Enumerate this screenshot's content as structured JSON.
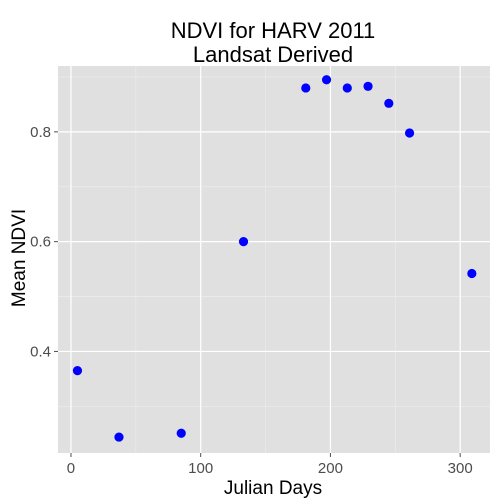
{
  "chart_data": {
    "type": "scatter",
    "title": [
      "NDVI for HARV 2011",
      "Landsat Derived"
    ],
    "xlabel": "Julian Days",
    "ylabel": "Mean NDVI",
    "xlim": [
      -10,
      323
    ],
    "ylim": [
      0.215,
      0.92
    ],
    "xticks": [
      0,
      100,
      200,
      300
    ],
    "yticks": [
      0.4,
      0.6,
      0.8
    ],
    "ytick_labels": [
      "0.4",
      "0.6",
      "0.8"
    ],
    "grid": true,
    "background_color": "#e0e0e0",
    "grid_major_color": "#ffffff",
    "grid_minor_color": "#ebebeb",
    "point_color": "#0000ff",
    "points": [
      {
        "x": 5,
        "y": 0.365
      },
      {
        "x": 37,
        "y": 0.244
      },
      {
        "x": 85,
        "y": 0.251
      },
      {
        "x": 133,
        "y": 0.6
      },
      {
        "x": 181,
        "y": 0.88
      },
      {
        "x": 197,
        "y": 0.895
      },
      {
        "x": 213,
        "y": 0.88
      },
      {
        "x": 229,
        "y": 0.883
      },
      {
        "x": 245,
        "y": 0.852
      },
      {
        "x": 261,
        "y": 0.798
      },
      {
        "x": 309,
        "y": 0.542
      }
    ]
  }
}
